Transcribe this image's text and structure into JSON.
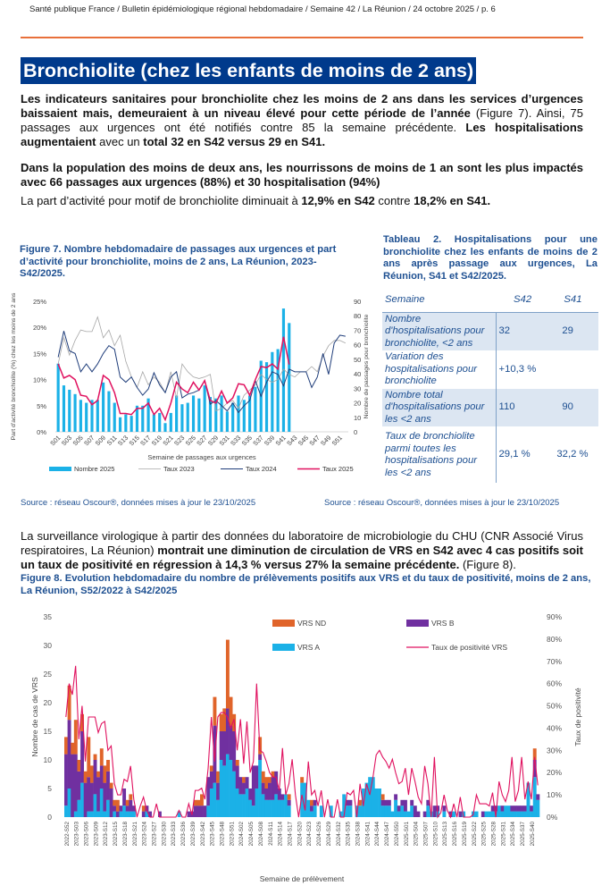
{
  "header": {
    "running_title": "Santé publique France / Bulletin épidémiologique régional hebdomadaire / Semaine 42 / La Réunion / 24 octobre 2025 / p. 6"
  },
  "section": {
    "title": "Bronchiolite (chez les enfants de moins de 2 ans)"
  },
  "paragraphs": {
    "p1_b1": "Les indicateurs sanitaires pour bronchiolite chez les moins de 2 ans dans les services d’urgences baissaient mais, demeuraient à un niveau élevé pour cette période de l’année",
    "p1_t1": " (Figure 7). Ainsi, 75 passages aux urgences ont été notifiés contre 85 la semaine précédente. ",
    "p1_b2": "Les hospitalisations augmentaient",
    "p1_t2": " avec un ",
    "p1_b3": "total 32 en S42 versus 29 en S41.",
    "p2": "Dans la population des moins de deux ans, les nourrissons de moins de 1 an sont les plus impactés avec 66 passages aux urgences (88%) et 30 hospitalisation (94%)",
    "p3_t1": "La part d’activité pour motif de bronchiolite diminuait à ",
    "p3_b1": "12,9% en S42",
    "p3_t2": " contre ",
    "p3_b2": "18,2% en S41.",
    "p4_t1": "La surveillance virologique à partir des données du laboratoire de microbiologie du CHU (CNR Associé Virus respiratoires, La Réunion) ",
    "p4_b1": "montrait une diminution de circulation de VRS en S42 avec 4 cas positifs soit un taux de positivité en régression à 14,3 % versus 27% la semaine précédente.",
    "p4_t2": " (Figure 8)."
  },
  "figure7": {
    "title": "Figure 7. Nombre hebdomadaire de passages aux urgences et part d’activité pour bronchiolite, moins de 2 ans, La Réunion, 2023-S42/2025.",
    "source": "Source : réseau Oscour®, données mises à jour le 23/10/2025"
  },
  "table2": {
    "title": "Tableau 2. Hospitalisations pour une bronchiolite chez les enfants de moins de 2 ans après passage aux urgences, La Réunion, S41 et S42/2025.",
    "header": [
      "Semaine",
      "S42",
      "S41"
    ],
    "rows": [
      [
        "Nombre d'hospitalisations pour bronchiolite, <2 ans",
        "32",
        "29"
      ],
      [
        "Variation des hospitalisations pour bronchiolite",
        "+10,3 %",
        ""
      ],
      [
        "Nombre total d'hospitalisations pour les <2 ans",
        "110",
        "90"
      ],
      [
        "Taux de bronchiolite parmi toutes les hospitalisations pour les <2 ans",
        "29,1 %",
        "32,2 %"
      ]
    ],
    "source": "Source : réseau Oscour®, données mises à jour le 23/10/2025"
  },
  "figure8": {
    "title": "Figure 8. Evolution hebdomadaire du nombre de prélèvements positifs aux VRS et du taux de positivité, moins de 2 ans, La Réunion, S52/2022 à S42/2025"
  },
  "chart_data": [
    {
      "type": "bar+line",
      "xlabel": "Semaine de passages aux urgences",
      "ylabel_left": "Part d’activité bronchiolite (%) chez les moins de 2 ans",
      "ylabel_right": "Nombre de passages pour bronchiolite",
      "ylim_left": [
        0,
        25
      ],
      "ylim_right": [
        0,
        90
      ],
      "yticks_left": [
        "0%",
        "5%",
        "10%",
        "15%",
        "20%",
        "25%"
      ],
      "yticks_right": [
        "0",
        "10",
        "20",
        "30",
        "40",
        "50",
        "60",
        "70",
        "80",
        "90"
      ],
      "xticks": [
        "S01",
        "S03",
        "S05",
        "S07",
        "S09",
        "S11",
        "S13",
        "S15",
        "S17",
        "S19",
        "S21",
        "S23",
        "S25",
        "S27",
        "S29",
        "S31",
        "S33",
        "S35",
        "S37",
        "S39",
        "S41",
        "S43",
        "S45",
        "S47",
        "S49",
        "S51"
      ],
      "legend_position": "bottom",
      "colors": {
        "bars": "#1bb1e7",
        "taux2023": "#a6a6a6",
        "taux2024": "#1f3d7a",
        "taux2025": "#e0115f"
      },
      "series": [
        {
          "name": "Nombre 2025",
          "axis": "right",
          "kind": "bar",
          "values": [
            47,
            32,
            29,
            26,
            22,
            20,
            22,
            22,
            34,
            28,
            20,
            10,
            12,
            11,
            18,
            18,
            23,
            12,
            13,
            6,
            13,
            25,
            19,
            20,
            25,
            23,
            32,
            24,
            23,
            25,
            14,
            20,
            25,
            22,
            25,
            31,
            49,
            48,
            55,
            57,
            85,
            75
          ]
        },
        {
          "name": "Taux 2023",
          "axis": "left",
          "kind": "line",
          "values": [
            13,
            18,
            14.7,
            17.5,
            19.5,
            19.2,
            19.2,
            22,
            18,
            19.5,
            16.5,
            18.5,
            13.5,
            10.5,
            8.5,
            11.5,
            9,
            10.5,
            9.5,
            7.5,
            11.5,
            6.5,
            13,
            11.5,
            10.5,
            10.2,
            10.5,
            11,
            4,
            4.5,
            5.5,
            6,
            4.5,
            7,
            8,
            9,
            11,
            10,
            9.5,
            10,
            12,
            11,
            10.5,
            11.5,
            11.5,
            12.5,
            11.5,
            14.5,
            16.5,
            17.5,
            17.5,
            17
          ]
        },
        {
          "name": "Taux 2024",
          "axis": "left",
          "kind": "line",
          "values": [
            14.3,
            19.3,
            15.5,
            15,
            11.5,
            13,
            11.5,
            13,
            15,
            16.5,
            15.8,
            10.5,
            9.5,
            10.5,
            8.5,
            7,
            8.2,
            11.3,
            9,
            7.5,
            10.5,
            11.5,
            6.5,
            7.2,
            7.5,
            8,
            9.8,
            5.3,
            6,
            5,
            4,
            5.5,
            3.7,
            5,
            6,
            9.8,
            6.8,
            9.5,
            11.5,
            11,
            8.8,
            12,
            11.5,
            11.5,
            11.5,
            8.5,
            10.5,
            15,
            11,
            17,
            18.5,
            18.3
          ]
        },
        {
          "name": "Taux 2025",
          "axis": "left",
          "kind": "line",
          "values": [
            13,
            10.3,
            10.8,
            10,
            7,
            6.8,
            5.2,
            6,
            10.8,
            10,
            7.5,
            3.5,
            3.5,
            3.3,
            4.5,
            4.5,
            5.5,
            3.3,
            4.5,
            2.3,
            5.5,
            9.5,
            8.2,
            7.5,
            9.5,
            8,
            9.8,
            6,
            5.5,
            7.8,
            5.5,
            6.5,
            9.2,
            9,
            7,
            10,
            12.5,
            12.3,
            13,
            12,
            18.2,
            12.9
          ]
        }
      ]
    },
    {
      "type": "stacked-bar+line",
      "xlabel": "Semaine de prélèvement",
      "ylabel_left": "Nombre de cas de VRS",
      "ylabel_right": "Taux de positivité",
      "ylim_left": [
        0,
        35
      ],
      "ylim_right": [
        0,
        90
      ],
      "yticks_left": [
        "0",
        "5",
        "10",
        "15",
        "20",
        "25",
        "30",
        "35"
      ],
      "yticks_right": [
        "0%",
        "10%",
        "20%",
        "30%",
        "40%",
        "50%",
        "60%",
        "70%",
        "80%",
        "90%"
      ],
      "xticks": [
        "2022-S52",
        "2023-S03",
        "2023-S06",
        "2023-S09",
        "2023-S12",
        "2023-S15",
        "2023-S18",
        "2023-S21",
        "2023-S24",
        "2023-S27",
        "2023-S30",
        "2023-S33",
        "2023-S36",
        "2023-S39",
        "2023-S42",
        "2023-S45",
        "2023-S48",
        "2023-S51",
        "2024-S02",
        "2024-S05",
        "2024-S08",
        "2024-S11",
        "2024-S14",
        "2024-S17",
        "2024-S20",
        "2024-S23",
        "2024-S26",
        "2024-S29",
        "2024-S32",
        "2024-S35",
        "2024-S38",
        "2024-S41",
        "2024-S44",
        "2024-S47",
        "2024-S50",
        "2025-S01",
        "2025-S04",
        "2025-S07",
        "2025-S10",
        "2025-S13",
        "2025-S16",
        "2025-S19",
        "2025-S22",
        "2025-S25",
        "2025-S28",
        "2025-S31",
        "2025-S34",
        "2025-S37",
        "2025-S40"
      ],
      "legend_position": "top-right",
      "colors": {
        "VRS ND": "#e0642a",
        "VRS B": "#7030a0",
        "VRS A": "#1bb1e7",
        "taux": "#e0115f"
      },
      "series": [
        {
          "name": "VRS A",
          "kind": "bar",
          "values": [
            2,
            5,
            0,
            1,
            3,
            6,
            0,
            1,
            1,
            4,
            1,
            5,
            1,
            3,
            0,
            1,
            0,
            1,
            2,
            1,
            1,
            1,
            0,
            0,
            0,
            1,
            0,
            0,
            0,
            0,
            0,
            0,
            0,
            0,
            0,
            1,
            0,
            0,
            0,
            0,
            0,
            0,
            0,
            0,
            2,
            5,
            6,
            3,
            10,
            9,
            11,
            10,
            8,
            5,
            4,
            4,
            5,
            3,
            2,
            5,
            10,
            4,
            3,
            3,
            3,
            4,
            3,
            3,
            4,
            2,
            0,
            0,
            0,
            6,
            6,
            3,
            1,
            2,
            0,
            2,
            0,
            0,
            2,
            0,
            0,
            1,
            4,
            2,
            2,
            0,
            2,
            2,
            5,
            6,
            7,
            7,
            5,
            5,
            2,
            2,
            2,
            1,
            3,
            1,
            2,
            1,
            1,
            2,
            0,
            0,
            0,
            0,
            2,
            1,
            0,
            1,
            0,
            1,
            0,
            0,
            1,
            0,
            0,
            1,
            0,
            0,
            1,
            1,
            0,
            0,
            1,
            1,
            1,
            1,
            2,
            1,
            2,
            2,
            1,
            1,
            1,
            1,
            1,
            6,
            1,
            7,
            3
          ]
        },
        {
          "name": "VRS B",
          "kind": "bar",
          "values": [
            9,
            12,
            11,
            10,
            5,
            9,
            6,
            6,
            5,
            6,
            6,
            4,
            5,
            5,
            5,
            1,
            1,
            1,
            3,
            1,
            2,
            1,
            0,
            0,
            1,
            1,
            1,
            0,
            0,
            1,
            0,
            0,
            0,
            0,
            0,
            0,
            0,
            0,
            1,
            1,
            2,
            2,
            2,
            2,
            5,
            3,
            10,
            3,
            5,
            6,
            8,
            6,
            7,
            4,
            3,
            2,
            2,
            2,
            7,
            4,
            1,
            2,
            2,
            3,
            4,
            4,
            2,
            1,
            0,
            1,
            0,
            0,
            0,
            0,
            0,
            0,
            1,
            1,
            0,
            0,
            0,
            0,
            0,
            0,
            0,
            0,
            0,
            1,
            1,
            0,
            0,
            0,
            0,
            0,
            0,
            0,
            0,
            0,
            1,
            1,
            1,
            0,
            1,
            1,
            1,
            2,
            0,
            1,
            2,
            1,
            0,
            1,
            1,
            0,
            2,
            1,
            0,
            1,
            0,
            1,
            0,
            0,
            1,
            0,
            0,
            0,
            0,
            0,
            0,
            1,
            0,
            0,
            1,
            1,
            0,
            1,
            0,
            0,
            1,
            1,
            1,
            1,
            1,
            0,
            1,
            3,
            1
          ]
        },
        {
          "name": "VRS ND",
          "kind": "bar",
          "values": [
            3,
            6,
            2,
            6,
            2,
            3,
            2,
            7,
            3,
            1,
            1,
            3,
            3,
            2,
            1,
            1,
            2,
            0,
            0,
            1,
            1,
            0,
            0,
            0,
            1,
            0,
            0,
            0,
            0,
            0,
            0,
            0,
            0,
            0,
            0,
            0,
            0,
            0,
            0,
            0,
            1,
            1,
            2,
            0,
            0,
            1,
            5,
            2,
            3,
            4,
            12,
            5,
            3,
            1,
            0,
            1,
            0,
            0,
            0,
            0,
            3,
            2,
            2,
            1,
            1,
            0,
            0,
            0,
            0,
            1,
            0,
            0,
            0,
            1,
            0,
            0,
            1,
            0,
            0,
            0,
            0,
            0,
            0,
            0,
            0,
            0,
            0,
            0,
            0,
            0,
            0,
            1,
            0,
            0,
            0,
            0,
            0,
            0,
            1,
            0,
            0,
            0,
            0,
            0,
            0,
            0,
            0,
            0,
            0,
            0,
            0,
            0,
            0,
            0,
            0,
            0,
            0,
            0,
            0,
            0,
            0,
            0,
            0,
            0,
            0,
            0,
            0,
            0,
            0,
            0,
            0,
            0,
            0,
            0,
            0,
            0,
            0,
            0,
            0,
            0,
            0,
            0,
            0,
            0,
            0,
            2,
            0
          ]
        },
        {
          "name": "Taux de positivité VRS",
          "kind": "line",
          "axis": "right",
          "values": [
            45,
            60,
            55,
            68,
            35,
            50,
            25,
            45,
            45,
            45,
            38,
            42,
            43,
            30,
            32,
            15,
            10,
            10,
            17,
            16,
            23,
            8,
            0,
            5,
            9,
            3,
            0,
            0,
            6,
            0,
            0,
            0,
            0,
            0,
            0,
            3,
            0,
            0,
            6,
            1,
            12,
            12,
            13,
            8,
            22,
            45,
            25,
            45,
            47,
            47,
            45,
            40,
            44,
            30,
            44,
            24,
            43,
            20,
            25,
            60,
            30,
            29,
            25,
            20,
            18,
            18,
            12,
            31,
            10,
            15,
            26,
            10,
            0,
            10,
            3,
            25,
            10,
            12,
            5,
            12,
            0,
            8,
            0,
            0,
            8,
            0,
            0,
            11,
            10,
            12,
            0,
            15,
            5,
            15,
            10,
            18,
            28,
            30,
            27,
            25,
            22,
            26,
            20,
            15,
            16,
            22,
            10,
            22,
            16,
            9,
            6,
            23,
            15,
            0,
            27,
            0,
            2,
            10,
            3,
            0,
            6,
            0,
            9,
            0,
            0,
            0,
            1,
            10,
            6,
            6,
            6,
            5,
            11,
            0,
            16,
            10,
            7,
            12,
            27,
            7,
            12,
            27,
            8,
            16,
            8,
            27,
            14.3
          ]
        }
      ]
    }
  ]
}
